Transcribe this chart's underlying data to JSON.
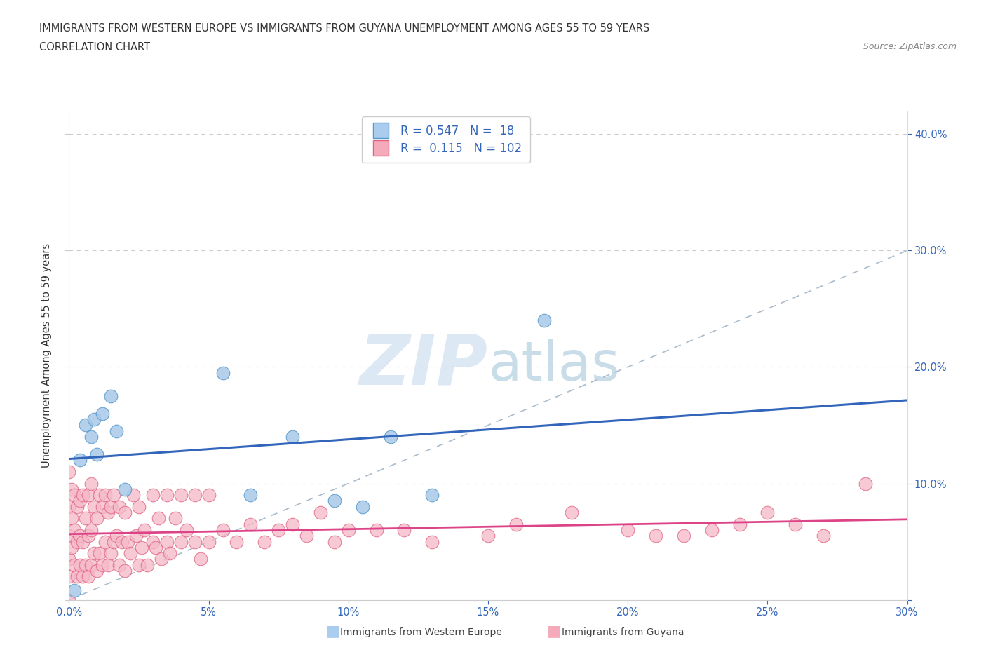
{
  "title_line1": "IMMIGRANTS FROM WESTERN EUROPE VS IMMIGRANTS FROM GUYANA UNEMPLOYMENT AMONG AGES 55 TO 59 YEARS",
  "title_line2": "CORRELATION CHART",
  "source": "Source: ZipAtlas.com",
  "ylabel": "Unemployment Among Ages 55 to 59 years",
  "xlim": [
    0.0,
    0.3
  ],
  "ylim": [
    0.0,
    0.42
  ],
  "western_europe_R": 0.547,
  "western_europe_N": 18,
  "guyana_R": 0.115,
  "guyana_N": 102,
  "blue_scatter_color": "#a8c8e8",
  "blue_scatter_edge": "#5599cc",
  "pink_scatter_color": "#f5b8c8",
  "pink_scatter_edge": "#e06080",
  "blue_line_color": "#3366bb",
  "pink_line_color": "#dd4488",
  "legend_blue_fill": "#aaccee",
  "legend_pink_fill": "#f5aabb",
  "watermark_color": "#dde8f5",
  "blue_text_color": "#3366bb",
  "legend_text_color": "#000000",
  "we_x": [
    0.002,
    0.004,
    0.006,
    0.008,
    0.009,
    0.01,
    0.012,
    0.015,
    0.017,
    0.02,
    0.055,
    0.065,
    0.08,
    0.095,
    0.105,
    0.115,
    0.13,
    0.17
  ],
  "we_y": [
    0.008,
    0.12,
    0.15,
    0.14,
    0.155,
    0.125,
    0.16,
    0.175,
    0.145,
    0.095,
    0.195,
    0.09,
    0.14,
    0.085,
    0.08,
    0.14,
    0.09,
    0.24
  ],
  "gu_x": [
    0.0,
    0.0,
    0.0,
    0.0,
    0.0,
    0.0,
    0.001,
    0.001,
    0.001,
    0.002,
    0.002,
    0.002,
    0.003,
    0.003,
    0.003,
    0.004,
    0.004,
    0.004,
    0.005,
    0.005,
    0.005,
    0.006,
    0.006,
    0.007,
    0.007,
    0.007,
    0.008,
    0.008,
    0.008,
    0.009,
    0.009,
    0.01,
    0.01,
    0.011,
    0.011,
    0.012,
    0.012,
    0.013,
    0.013,
    0.014,
    0.014,
    0.015,
    0.015,
    0.016,
    0.016,
    0.017,
    0.018,
    0.018,
    0.019,
    0.02,
    0.02,
    0.021,
    0.022,
    0.023,
    0.024,
    0.025,
    0.025,
    0.026,
    0.027,
    0.028,
    0.03,
    0.03,
    0.031,
    0.032,
    0.033,
    0.035,
    0.035,
    0.036,
    0.038,
    0.04,
    0.04,
    0.042,
    0.045,
    0.045,
    0.047,
    0.05,
    0.05,
    0.055,
    0.06,
    0.065,
    0.07,
    0.075,
    0.08,
    0.085,
    0.09,
    0.095,
    0.1,
    0.11,
    0.12,
    0.13,
    0.15,
    0.16,
    0.18,
    0.2,
    0.21,
    0.22,
    0.23,
    0.24,
    0.25,
    0.26,
    0.27,
    0.285
  ],
  "gu_y": [
    0.0,
    0.02,
    0.035,
    0.055,
    0.08,
    0.11,
    0.045,
    0.07,
    0.095,
    0.03,
    0.06,
    0.09,
    0.02,
    0.05,
    0.08,
    0.03,
    0.055,
    0.085,
    0.02,
    0.05,
    0.09,
    0.03,
    0.07,
    0.02,
    0.055,
    0.09,
    0.03,
    0.06,
    0.1,
    0.04,
    0.08,
    0.025,
    0.07,
    0.04,
    0.09,
    0.03,
    0.08,
    0.05,
    0.09,
    0.03,
    0.075,
    0.04,
    0.08,
    0.05,
    0.09,
    0.055,
    0.03,
    0.08,
    0.05,
    0.025,
    0.075,
    0.05,
    0.04,
    0.09,
    0.055,
    0.03,
    0.08,
    0.045,
    0.06,
    0.03,
    0.05,
    0.09,
    0.045,
    0.07,
    0.035,
    0.05,
    0.09,
    0.04,
    0.07,
    0.05,
    0.09,
    0.06,
    0.05,
    0.09,
    0.035,
    0.05,
    0.09,
    0.06,
    0.05,
    0.065,
    0.05,
    0.06,
    0.065,
    0.055,
    0.075,
    0.05,
    0.06,
    0.06,
    0.06,
    0.05,
    0.055,
    0.065,
    0.075,
    0.06,
    0.055,
    0.055,
    0.06,
    0.065,
    0.075,
    0.065,
    0.055,
    0.1
  ]
}
